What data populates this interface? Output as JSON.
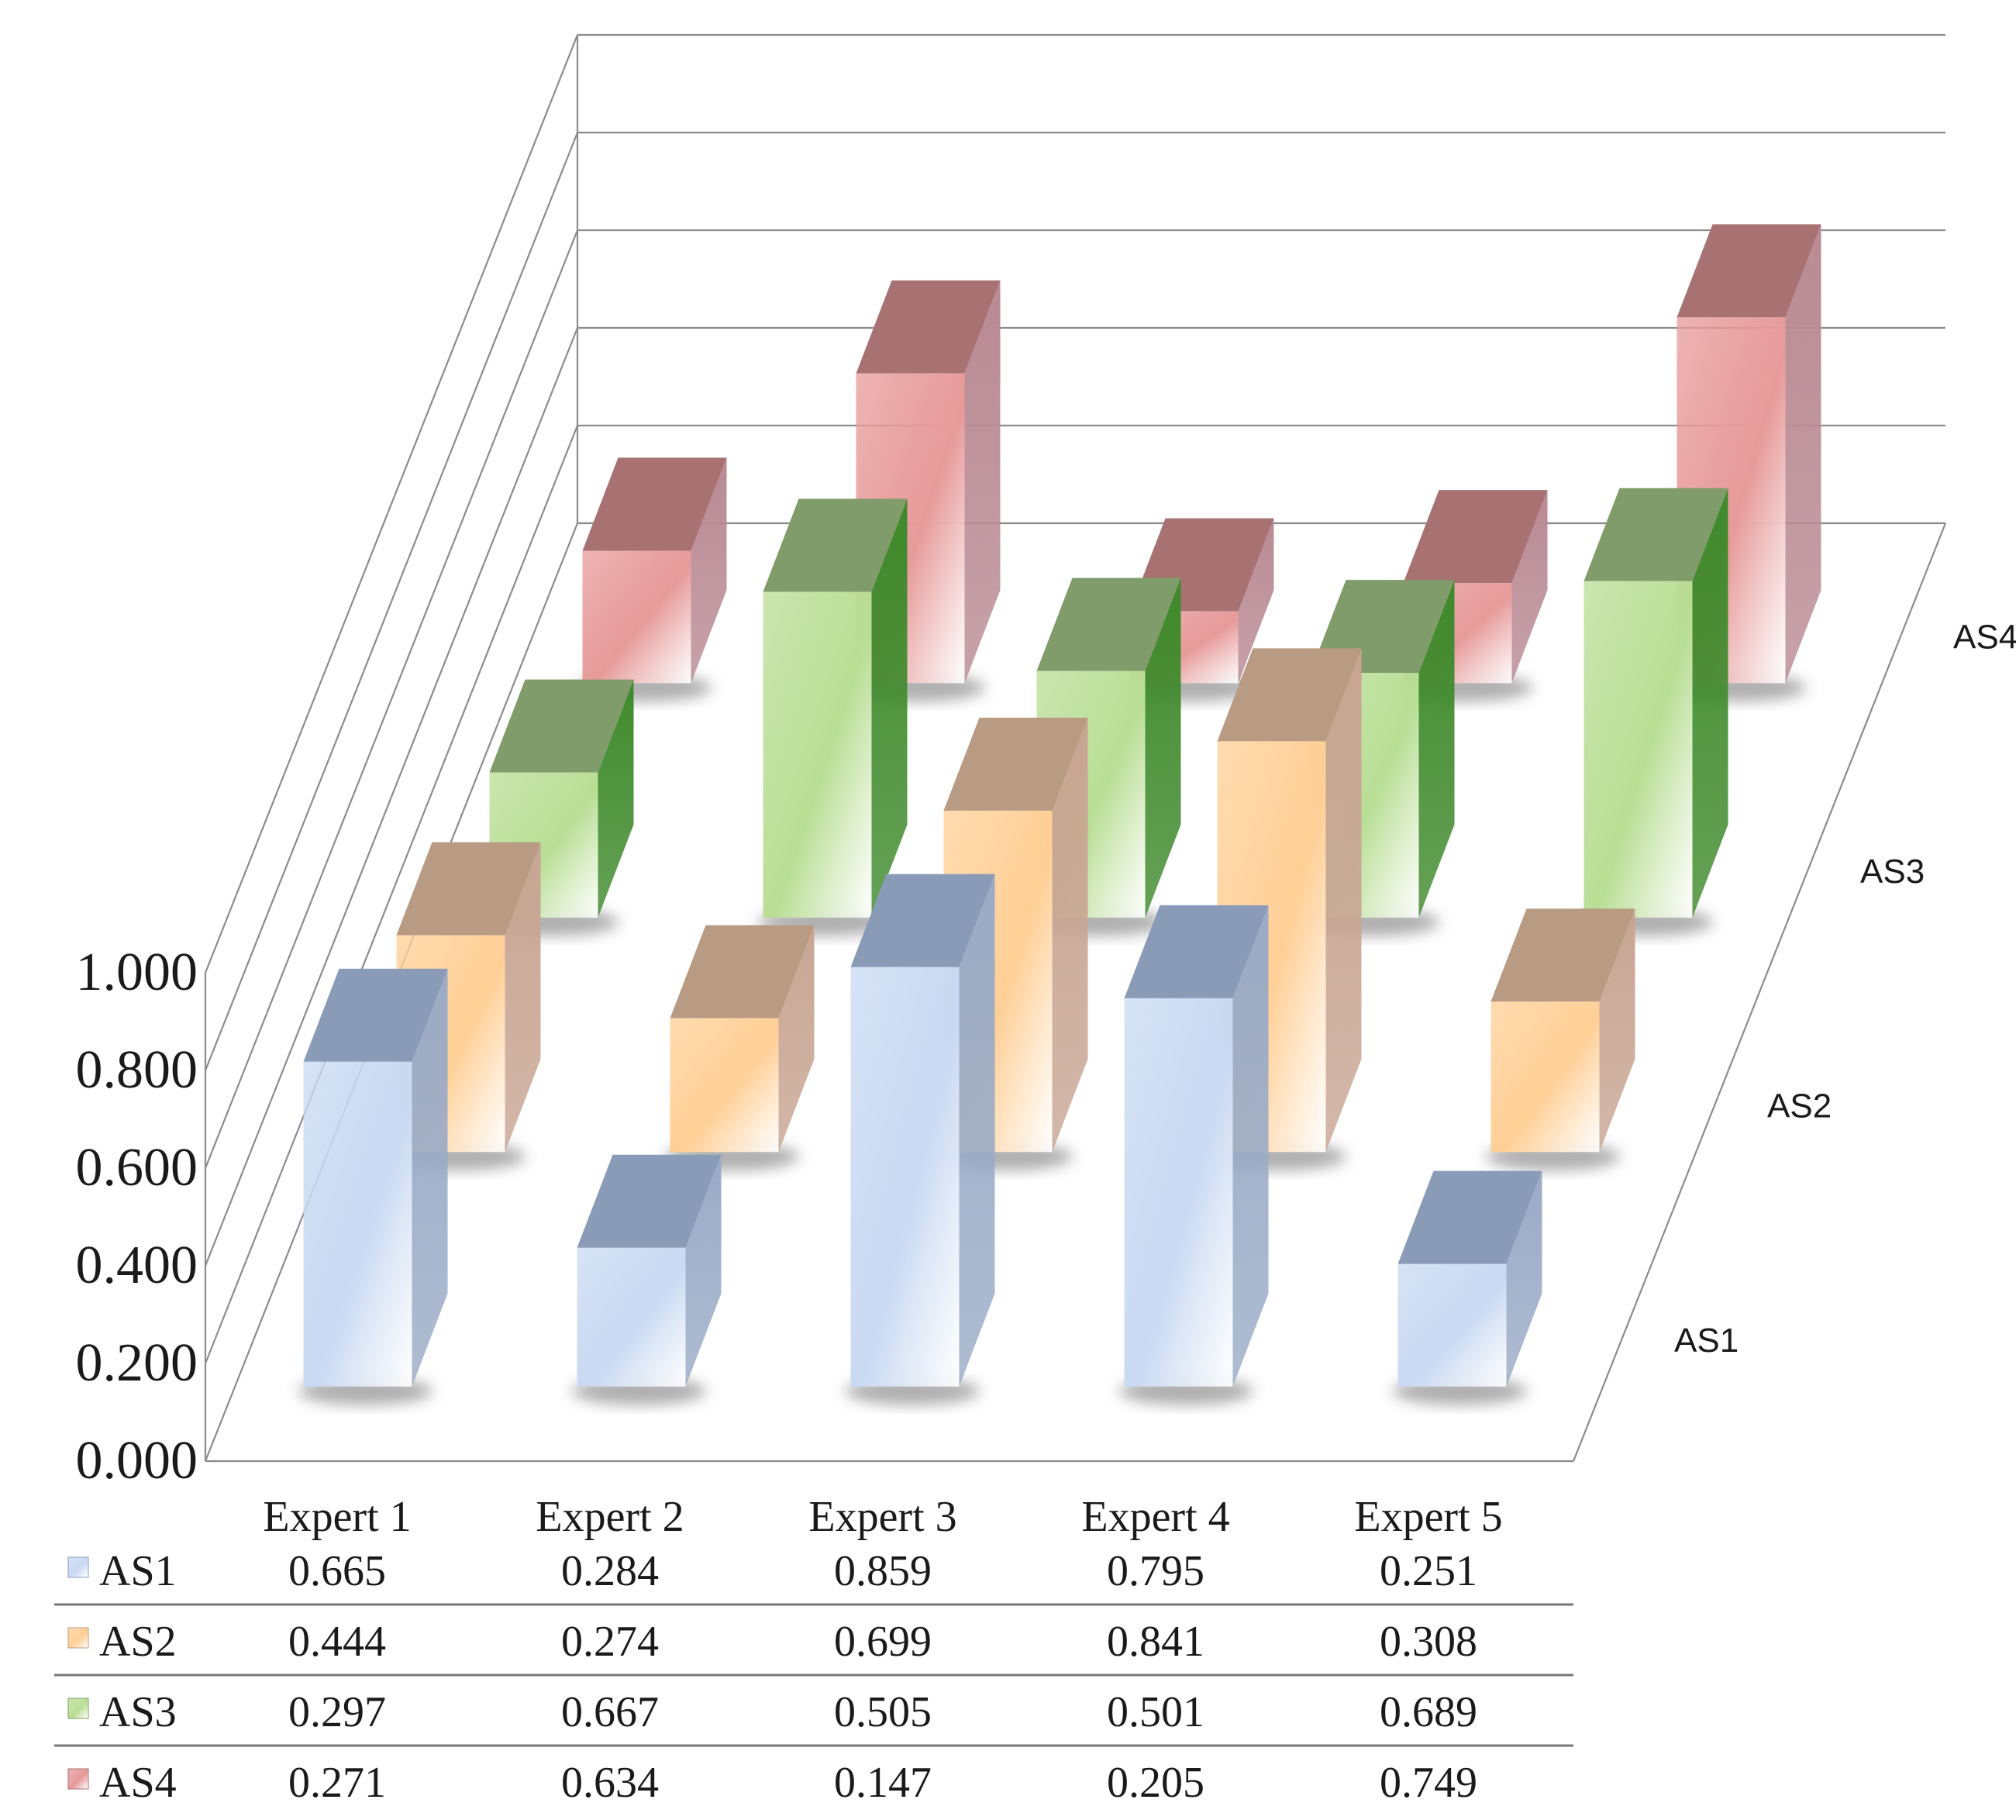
{
  "chart_data": {
    "type": "bar",
    "subtype": "3d-column-with-data-table",
    "categories": [
      "Expert 1",
      "Expert 2",
      "Expert 3",
      "Expert 4",
      "Expert 5"
    ],
    "series": [
      {
        "name": "AS1",
        "values": [
          0.665,
          0.284,
          0.859,
          0.795,
          0.251
        ],
        "display": [
          "0.665",
          "0.284",
          "0.859",
          "0.795",
          "0.251"
        ],
        "color": "#c9d9f2",
        "top_color": "#8a9bb8",
        "side_color": "#9aabc6"
      },
      {
        "name": "AS2",
        "values": [
          0.444,
          0.274,
          0.699,
          0.841,
          0.308
        ],
        "display": [
          "0.444",
          "0.274",
          "0.699",
          "0.841",
          "0.308"
        ],
        "color": "#ffcf96",
        "top_color": "#b99a82",
        "side_color": "#c8a593"
      },
      {
        "name": "AS3",
        "values": [
          0.297,
          0.667,
          0.505,
          0.501,
          0.689
        ],
        "display": [
          "0.297",
          "0.667",
          "0.505",
          "0.501",
          "0.689"
        ],
        "color": "#b9de95",
        "top_color": "#7f9c6a",
        "side_color": "#3f8a2c"
      },
      {
        "name": "AS4",
        "values": [
          0.271,
          0.634,
          0.147,
          0.205,
          0.749
        ],
        "display": [
          "0.271",
          "0.634",
          "0.147",
          "0.205",
          "0.749"
        ],
        "color": "#e79a9a",
        "top_color": "#a87272",
        "side_color": "#b98a94"
      }
    ],
    "yaxis": {
      "ticks": [
        "0.000",
        "0.200",
        "0.400",
        "0.600",
        "0.800",
        "1.000"
      ],
      "tick_values": [
        0,
        0.2,
        0.4,
        0.6,
        0.8,
        1.0
      ],
      "ylim": [
        0,
        1
      ]
    },
    "depth_axis_labels": [
      "AS1",
      "AS2",
      "AS3",
      "AS4"
    ],
    "title": "",
    "xlabel": "",
    "ylabel": "",
    "legend": "data-table",
    "grid": true
  }
}
